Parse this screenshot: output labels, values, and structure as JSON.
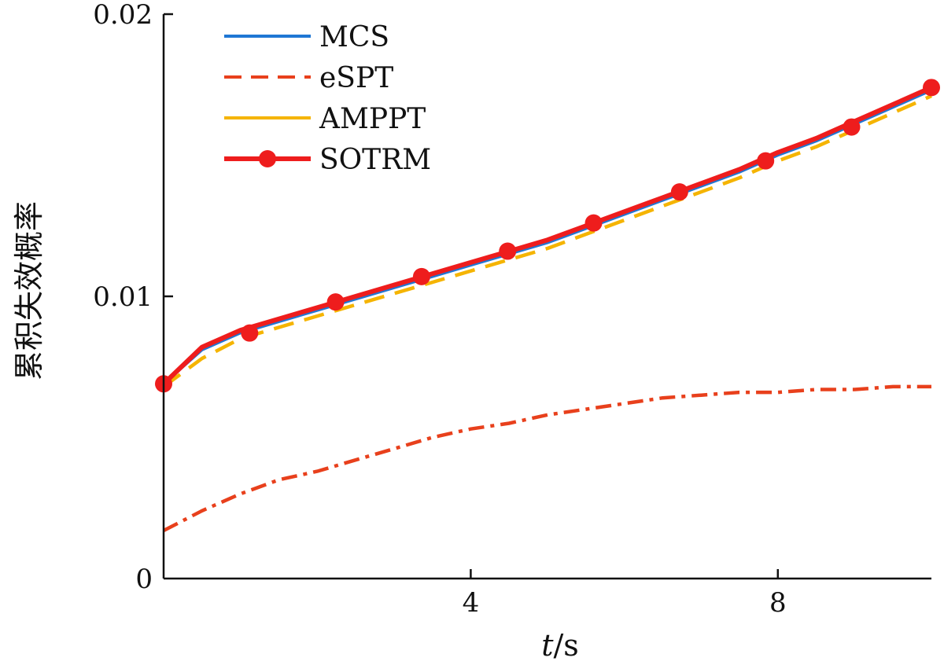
{
  "chart_data": {
    "type": "line",
    "title": "",
    "xlabel_italic": "t",
    "xlabel_unit": "/s",
    "ylabel": "累积失效概率",
    "xlim": [
      0,
      10
    ],
    "ylim": [
      0,
      0.02
    ],
    "xticks": [
      4,
      8
    ],
    "xtick_labels": [
      "4",
      "8"
    ],
    "yticks": [
      0,
      0.01,
      0.02
    ],
    "ytick_labels": [
      "0",
      "0.01",
      "0.02"
    ],
    "grid": false,
    "legend_position": "top-left",
    "series": [
      {
        "name": "MCS",
        "color": "#1f77d4",
        "style": "solid",
        "x": [
          0,
          0.5,
          1,
          1.5,
          2,
          2.5,
          3,
          3.5,
          4,
          4.5,
          5,
          5.5,
          6,
          6.5,
          7,
          7.5,
          8,
          8.5,
          9,
          9.5,
          10
        ],
        "y": [
          0.0069,
          0.0081,
          0.0087,
          0.0091,
          0.0095,
          0.0099,
          0.0103,
          0.0107,
          0.0111,
          0.0115,
          0.0119,
          0.0124,
          0.0129,
          0.0134,
          0.0139,
          0.0144,
          0.015,
          0.0155,
          0.0161,
          0.0167,
          0.0173
        ]
      },
      {
        "name": "eSPT",
        "color": "#e8401c",
        "style": "dashdot",
        "x": [
          0,
          0.5,
          1,
          1.5,
          2,
          2.5,
          3,
          3.5,
          4,
          4.5,
          5,
          5.5,
          6,
          6.5,
          7,
          7.5,
          8,
          8.5,
          9,
          9.5,
          10
        ],
        "y": [
          0.0017,
          0.0024,
          0.003,
          0.0035,
          0.0038,
          0.0042,
          0.0046,
          0.005,
          0.0053,
          0.0055,
          0.0058,
          0.006,
          0.0062,
          0.0064,
          0.0065,
          0.0066,
          0.0066,
          0.0067,
          0.0067,
          0.0068,
          0.0068
        ]
      },
      {
        "name": "AMPPT",
        "color": "#f5b400",
        "style": "dashed",
        "x": [
          0,
          0.5,
          1,
          1.5,
          2,
          2.5,
          3,
          3.5,
          4,
          4.5,
          5,
          5.5,
          6,
          6.5,
          7,
          7.5,
          8,
          8.5,
          9,
          9.5,
          10
        ],
        "y": [
          0.0068,
          0.0078,
          0.0085,
          0.0089,
          0.0093,
          0.0097,
          0.0101,
          0.0105,
          0.0109,
          0.0113,
          0.0117,
          0.0122,
          0.0127,
          0.0132,
          0.0137,
          0.0142,
          0.0148,
          0.0153,
          0.0159,
          0.0165,
          0.0171
        ]
      },
      {
        "name": "SOTRM",
        "color": "#ee1d1d",
        "style": "solid-markers",
        "x": [
          0,
          0.5,
          1,
          1.5,
          2,
          2.5,
          3,
          3.5,
          4,
          4.5,
          5,
          5.5,
          6,
          6.5,
          7,
          7.5,
          8,
          8.5,
          9,
          9.5,
          10
        ],
        "y": [
          0.0069,
          0.0082,
          0.0088,
          0.0092,
          0.0096,
          0.01,
          0.0104,
          0.0108,
          0.0112,
          0.0116,
          0.012,
          0.0125,
          0.013,
          0.0135,
          0.014,
          0.0145,
          0.0151,
          0.0156,
          0.0162,
          0.0168,
          0.0174
        ],
        "marker_x": [
          0,
          1.12,
          2.24,
          3.36,
          4.48,
          5.6,
          6.72,
          7.84,
          8.96,
          10
        ],
        "marker_y": [
          0.0069,
          0.0087,
          0.0098,
          0.0107,
          0.0116,
          0.0126,
          0.0137,
          0.0148,
          0.016,
          0.0174
        ]
      }
    ]
  }
}
